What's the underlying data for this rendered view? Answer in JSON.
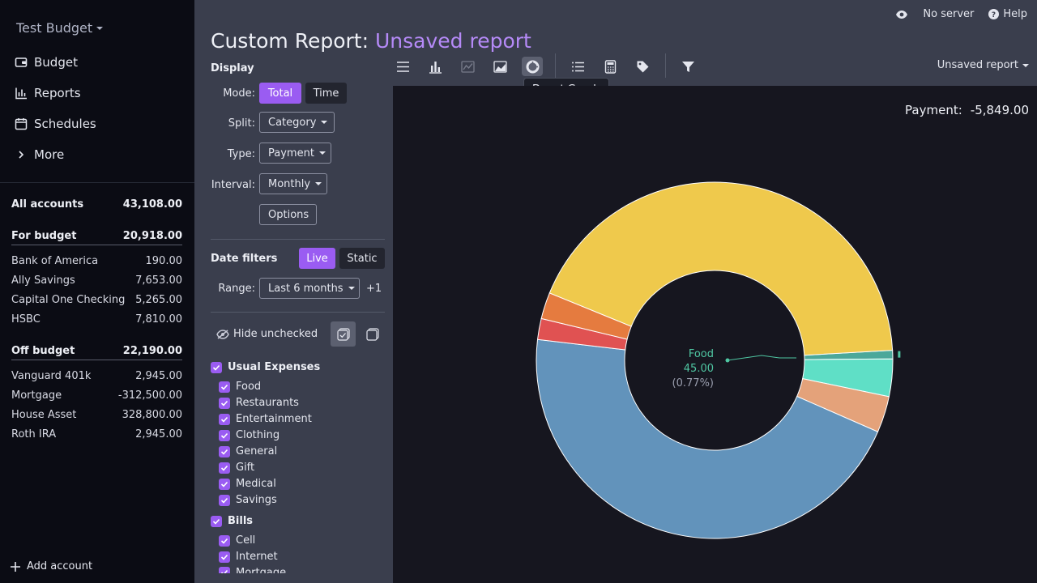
{
  "sidebar": {
    "budget_name": "Test Budget",
    "nav": [
      {
        "label": "Budget",
        "icon": "wallet-icon"
      },
      {
        "label": "Reports",
        "icon": "reports-icon"
      },
      {
        "label": "Schedules",
        "icon": "calendar-icon"
      },
      {
        "label": "More",
        "icon": "chevron-right-icon"
      }
    ],
    "all_accounts": {
      "name": "All accounts",
      "balance": "43,108.00"
    },
    "for_budget": {
      "name": "For budget",
      "balance": "20,918.00"
    },
    "budget_accounts": [
      {
        "name": "Bank of America",
        "balance": "190.00"
      },
      {
        "name": "Ally Savings",
        "balance": "7,653.00"
      },
      {
        "name": "Capital One Checking",
        "balance": "5,265.00"
      },
      {
        "name": "HSBC",
        "balance": "7,810.00"
      }
    ],
    "off_budget": {
      "name": "Off budget",
      "balance": "22,190.00"
    },
    "off_budget_accounts": [
      {
        "name": "Vanguard 401k",
        "balance": "2,945.00"
      },
      {
        "name": "Mortgage",
        "balance": "-312,500.00"
      },
      {
        "name": "House Asset",
        "balance": "328,800.00"
      },
      {
        "name": "Roth IRA",
        "balance": "2,945.00"
      }
    ],
    "add_account": "Add account"
  },
  "topbar": {
    "server": "No server",
    "help": "Help"
  },
  "title": {
    "main": "Custom Report:",
    "sub": "Unsaved report"
  },
  "panel": {
    "display_heading": "Display",
    "mode_label": "Mode:",
    "mode_total": "Total",
    "mode_time": "Time",
    "split_label": "Split:",
    "split_value": "Category",
    "type_label": "Type:",
    "type_value": "Payment",
    "interval_label": "Interval:",
    "interval_value": "Monthly",
    "options_button": "Options",
    "date_filters_heading": "Date filters",
    "live": "Live",
    "static": "Static",
    "range_label": "Range:",
    "range_value": "Last 6 months",
    "range_extra": "+1",
    "hide_unchecked": "Hide unchecked",
    "groups": [
      {
        "name": "Usual Expenses",
        "items": [
          "Food",
          "Restaurants",
          "Entertainment",
          "Clothing",
          "General",
          "Gift",
          "Medical",
          "Savings"
        ]
      },
      {
        "name": "Bills",
        "items": [
          "Cell",
          "Internet",
          "Mortgage"
        ]
      }
    ]
  },
  "toolbar": {
    "icons": [
      "table-icon",
      "bar-chart-icon",
      "line-chart-icon",
      "area-chart-icon",
      "donut-chart-icon",
      "list-icon",
      "calculator-icon",
      "tag-icon",
      "filter-icon"
    ],
    "tooltip": "Donut Graph",
    "report_menu": "Unsaved report"
  },
  "summary": {
    "label": "Payment:",
    "value": "-5,849.00"
  },
  "donut_label": {
    "name": "Food",
    "value": "45.00",
    "percent": "(0.77%)"
  },
  "colors": {
    "accent": "#9a5cf2",
    "title_sub": "#b58af7",
    "label_teal": "#4fc6a2"
  },
  "chart_data": {
    "type": "pie",
    "style": "donut",
    "summary_label": "Payment:",
    "summary_value": -5849.0,
    "highlighted": {
      "category": "Food",
      "value": 45.0,
      "percent": 0.77
    },
    "slices": [
      {
        "value": 0.77,
        "color": "#4ba89a"
      },
      {
        "value": 3.4,
        "color": "#5fdfc6"
      },
      {
        "value": 3.3,
        "color": "#e4a27a"
      },
      {
        "value": 45.3,
        "color": "#6293bb"
      },
      {
        "value": 1.9,
        "color": "#e05252"
      },
      {
        "value": 2.4,
        "color": "#e57b3f"
      },
      {
        "value": 42.93,
        "color": "#efc94c"
      }
    ]
  }
}
